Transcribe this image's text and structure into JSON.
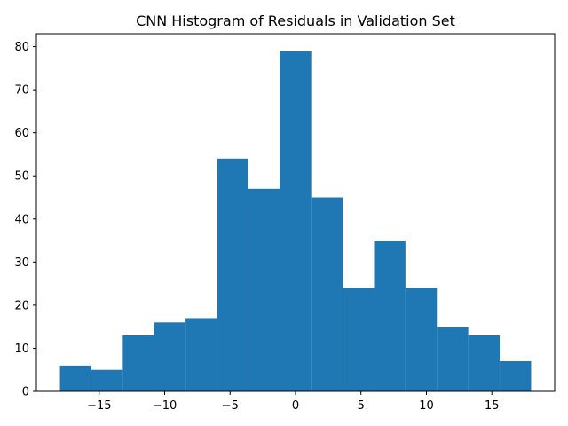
{
  "chart_data": {
    "type": "bar",
    "title": "CNN Histogram of Residuals in Validation Set",
    "xlabel": "",
    "ylabel": "",
    "bin_edges": [
      -18.0,
      -15.6,
      -13.2,
      -10.8,
      -8.4,
      -6.0,
      -3.6,
      -1.2,
      1.2,
      3.6,
      6.0,
      8.4,
      10.8,
      13.2,
      15.6,
      18.0
    ],
    "values": [
      6,
      5,
      13,
      16,
      17,
      54,
      47,
      79,
      45,
      24,
      35,
      24,
      15,
      13,
      7
    ],
    "xlim": [
      -19.8,
      19.8
    ],
    "ylim": [
      0,
      83
    ],
    "xticks": [
      -15,
      -10,
      -5,
      0,
      5,
      10,
      15
    ],
    "xtick_labels": [
      "−15",
      "−10",
      "−5",
      "0",
      "5",
      "10",
      "15"
    ],
    "yticks": [
      0,
      10,
      20,
      30,
      40,
      50,
      60,
      70,
      80
    ],
    "ytick_labels": [
      "0",
      "10",
      "20",
      "30",
      "40",
      "50",
      "60",
      "70",
      "80"
    ],
    "bar_color": "#1f77b4",
    "grid": false,
    "legend": "none"
  }
}
